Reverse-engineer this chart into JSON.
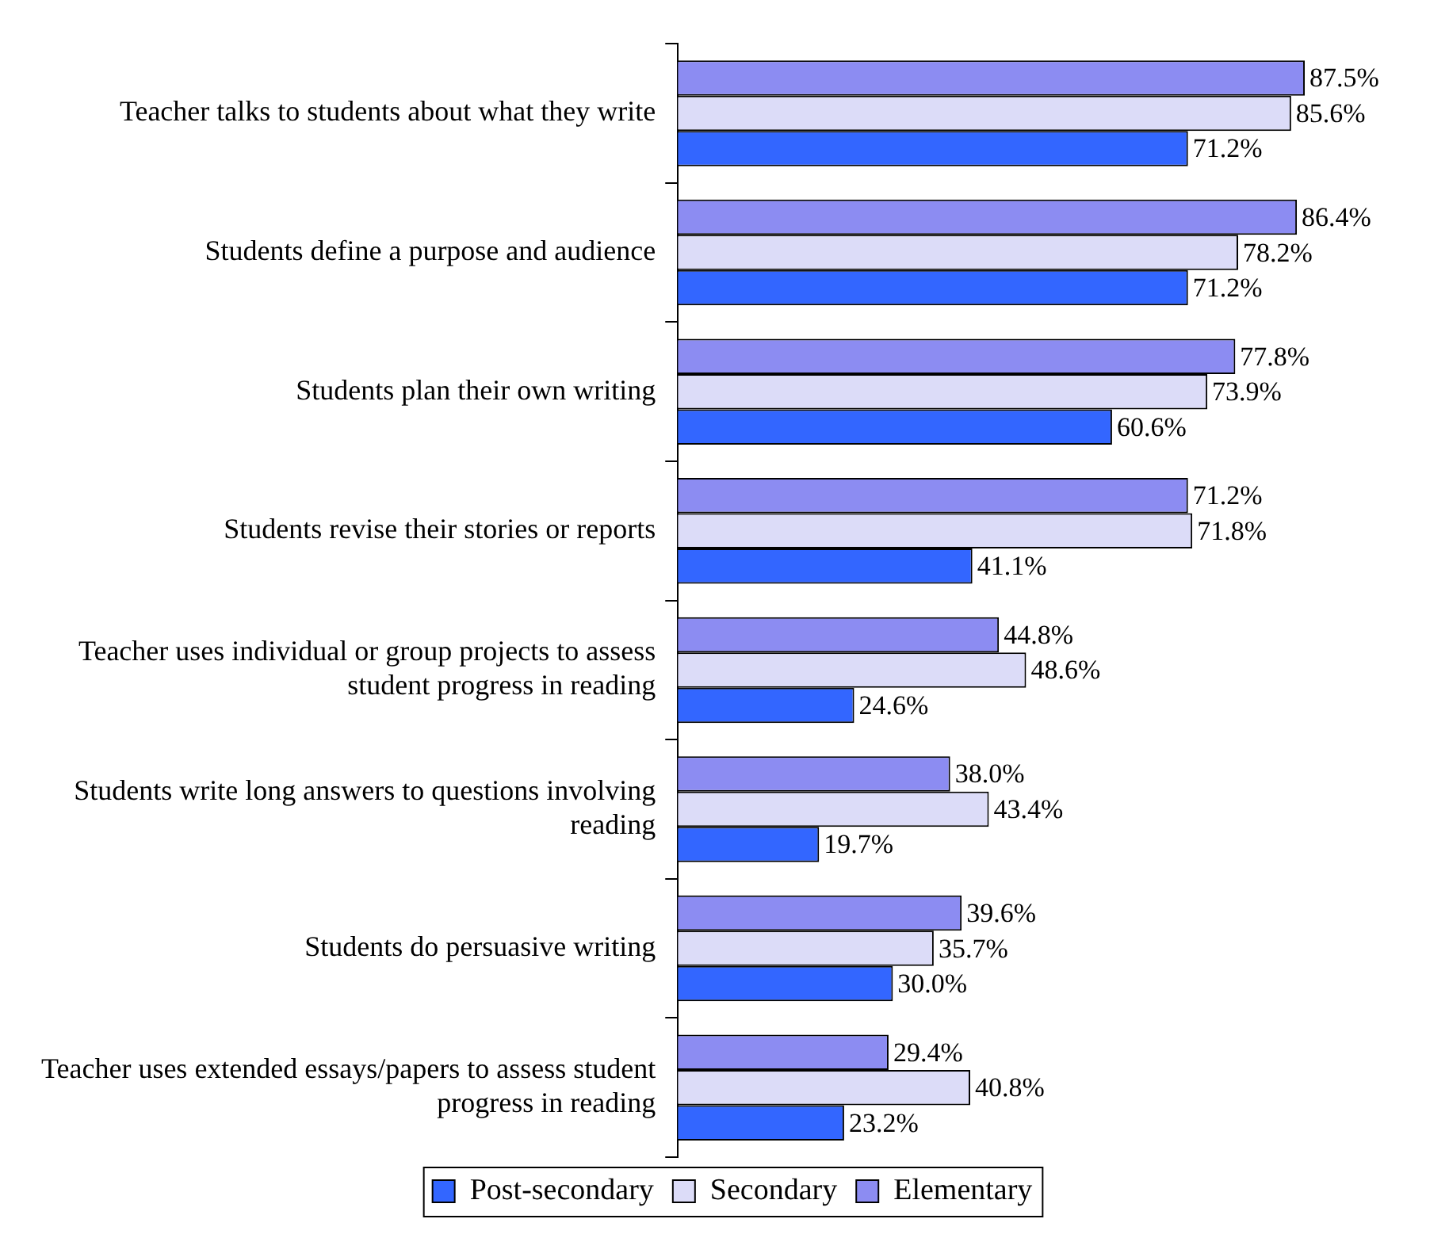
{
  "chart_data": {
    "type": "bar",
    "orientation": "horizontal",
    "categories": [
      "Teacher talks to students about what they write",
      "Students define a purpose and audience",
      "Students plan their own writing",
      "Students revise their stories or reports",
      "Teacher uses individual or group projects to assess student progress in reading",
      "Students write long answers to questions involving reading",
      "Students do persuasive writing",
      "Teacher uses extended essays/papers to assess student progress in reading"
    ],
    "series": [
      {
        "name": "Post-secondary",
        "color": "#3366ff",
        "values": [
          71.2,
          71.2,
          60.6,
          41.1,
          24.6,
          19.7,
          30.0,
          23.2
        ],
        "value_labels": [
          "71.2%",
          "71.2%",
          "60.6%",
          "41.1%",
          "24.6%",
          "19.7%",
          "30.0%",
          "23.2%"
        ]
      },
      {
        "name": "Secondary",
        "color": "#dcdcf8",
        "values": [
          85.6,
          78.2,
          73.9,
          71.8,
          48.6,
          43.4,
          35.7,
          40.8
        ],
        "value_labels": [
          "85.6%",
          "78.2%",
          "73.9%",
          "71.8%",
          "48.6%",
          "43.4%",
          "35.7%",
          "40.8%"
        ]
      },
      {
        "name": "Elementary",
        "color": "#8c8cf2",
        "values": [
          87.5,
          86.4,
          77.8,
          71.2,
          44.8,
          38.0,
          39.6,
          29.4
        ],
        "value_labels": [
          "87.5%",
          "86.4%",
          "77.8%",
          "71.2%",
          "44.8%",
          "38.0%",
          "39.6%",
          "29.4%"
        ]
      }
    ],
    "legend": "bottom",
    "grid": false,
    "tick_labels": "y"
  }
}
